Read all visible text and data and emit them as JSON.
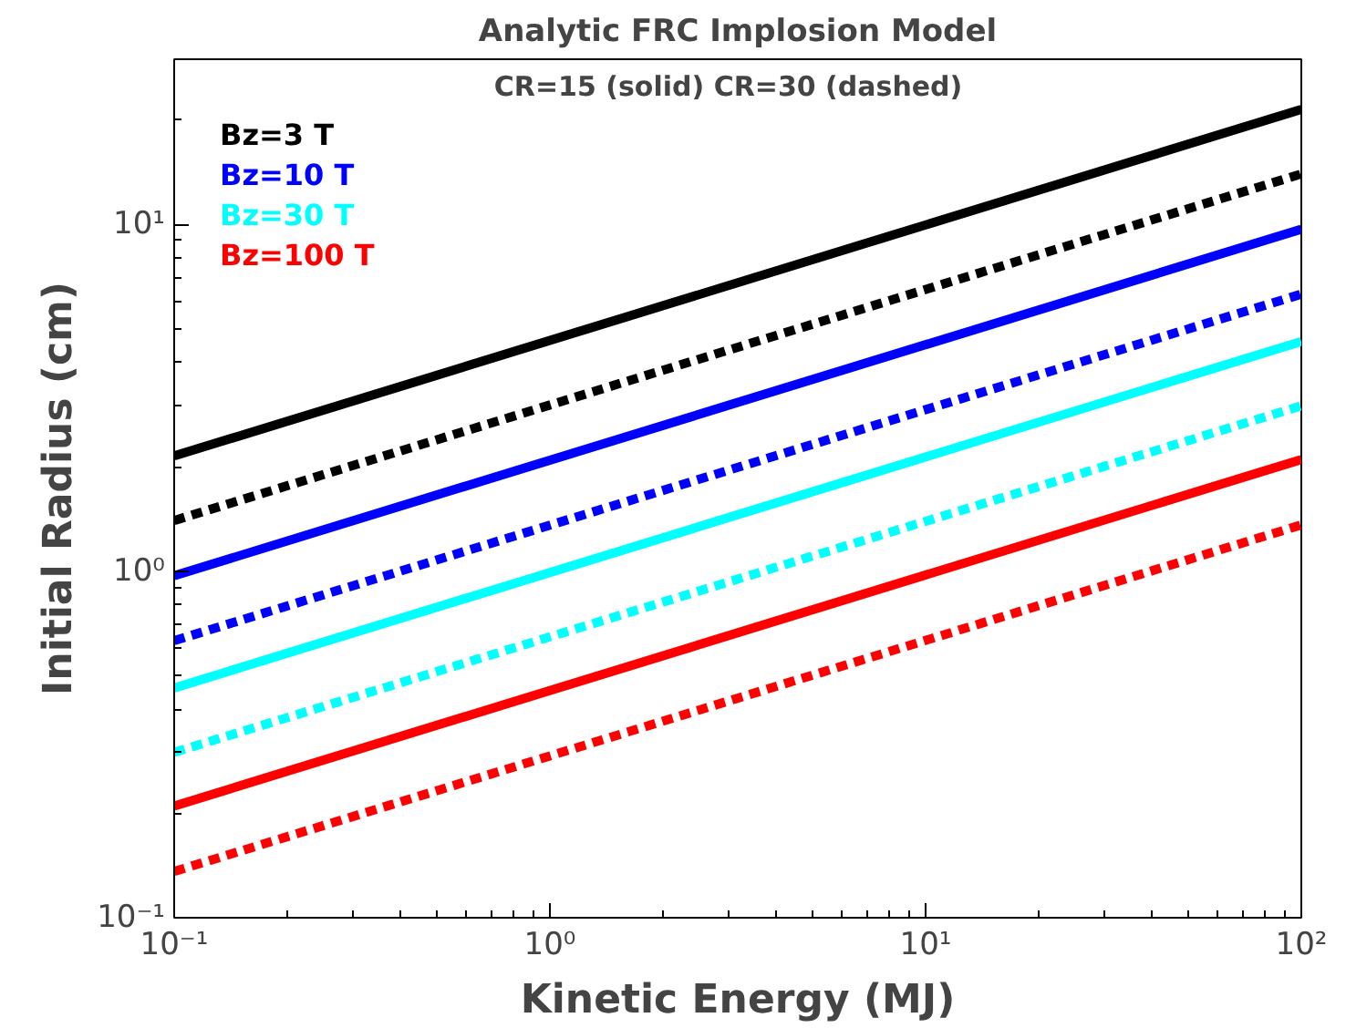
{
  "chart_data": {
    "type": "line",
    "title": "Analytic FRC Implosion Model",
    "xlabel": "Kinetic Energy (MJ)",
    "ylabel": "Initial Radius (cm)",
    "annotations": [
      "CR=15 (solid)   CR=30 (dashed)"
    ],
    "log": "xy",
    "grid": false,
    "legend": "top left",
    "marker": "none",
    "xlim": [
      0.1,
      100
    ],
    "ylim": [
      0.1,
      30
    ],
    "xticks": [
      {
        "value": 0.1,
        "label": "10⁻¹"
      },
      {
        "value": 1,
        "label": "10⁰"
      },
      {
        "value": 10,
        "label": "10¹"
      },
      {
        "value": 100,
        "label": "10²"
      }
    ],
    "yticks": [
      {
        "value": 0.1,
        "label": "10⁻¹"
      },
      {
        "value": 1,
        "label": "10⁰"
      },
      {
        "value": 10,
        "label": "10¹"
      }
    ],
    "x": [
      0.1,
      100
    ],
    "series": [
      {
        "name": "Bz=3 T",
        "color": "#000000",
        "values": [
          2.15,
          21.5
        ],
        "line_style": "solid"
      },
      {
        "color": "#000000",
        "values": [
          1.4,
          14
        ],
        "line_style": "dashed"
      },
      {
        "name": "Bz=10 T",
        "color": "#0000ff",
        "values": [
          0.97,
          9.7
        ],
        "line_style": "solid"
      },
      {
        "color": "#0000ff",
        "values": [
          0.63,
          6.3
        ],
        "line_style": "dashed"
      },
      {
        "name": "Bz=30 T",
        "color": "#00ffff",
        "values": [
          0.46,
          4.6
        ],
        "line_style": "solid"
      },
      {
        "color": "#00ffff",
        "values": [
          0.3,
          3.0
        ],
        "line_style": "dashed"
      },
      {
        "name": "Bz=100 T",
        "color": "#ff0000",
        "values": [
          0.21,
          2.1
        ],
        "line_style": "solid"
      },
      {
        "color": "#ff0000",
        "values": [
          0.136,
          1.36
        ],
        "line_style": "dashed"
      }
    ]
  }
}
